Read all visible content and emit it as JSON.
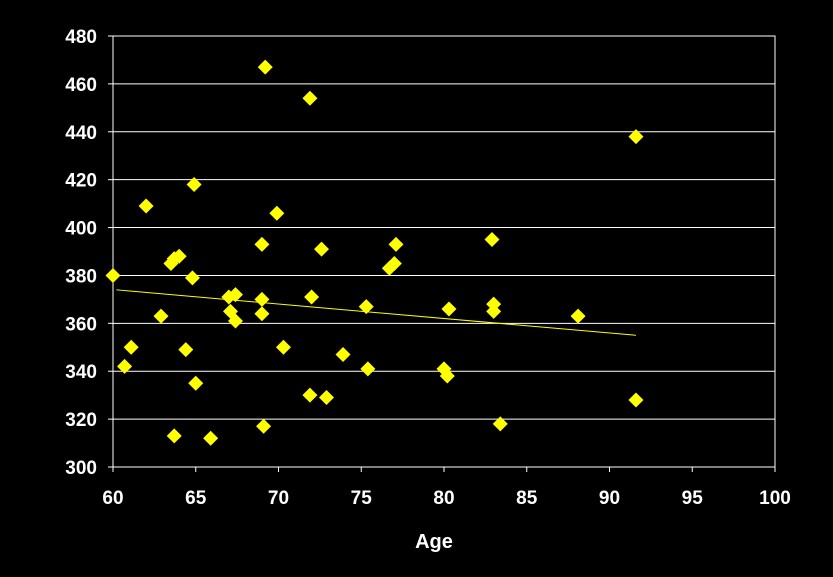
{
  "chart_data": {
    "type": "scatter",
    "title": "",
    "xlabel": "Age",
    "ylabel": "",
    "xlim": [
      60,
      100
    ],
    "ylim": [
      300,
      480
    ],
    "xticks": [
      60,
      65,
      70,
      75,
      80,
      85,
      90,
      95,
      100
    ],
    "yticks": [
      300,
      320,
      340,
      360,
      380,
      400,
      420,
      440,
      460,
      480
    ],
    "grid": "horizontal",
    "legend": "none",
    "colors": {
      "background": "#000000",
      "marker": "#ffff00",
      "trendline": "#ffff00",
      "gridline": "#ffffff",
      "text": "#ffffff"
    },
    "points": [
      {
        "x": 60.0,
        "y": 380
      },
      {
        "x": 60.7,
        "y": 342
      },
      {
        "x": 61.1,
        "y": 350
      },
      {
        "x": 62.0,
        "y": 409
      },
      {
        "x": 62.9,
        "y": 363
      },
      {
        "x": 63.5,
        "y": 385
      },
      {
        "x": 63.7,
        "y": 387
      },
      {
        "x": 63.7,
        "y": 313
      },
      {
        "x": 64.0,
        "y": 388
      },
      {
        "x": 64.4,
        "y": 349
      },
      {
        "x": 64.8,
        "y": 379
      },
      {
        "x": 64.9,
        "y": 418
      },
      {
        "x": 65.0,
        "y": 335
      },
      {
        "x": 65.9,
        "y": 312
      },
      {
        "x": 67.0,
        "y": 371
      },
      {
        "x": 67.1,
        "y": 365
      },
      {
        "x": 67.4,
        "y": 372
      },
      {
        "x": 67.4,
        "y": 361
      },
      {
        "x": 69.0,
        "y": 393
      },
      {
        "x": 69.0,
        "y": 370
      },
      {
        "x": 69.0,
        "y": 364
      },
      {
        "x": 69.2,
        "y": 467
      },
      {
        "x": 69.1,
        "y": 317
      },
      {
        "x": 69.9,
        "y": 406
      },
      {
        "x": 70.3,
        "y": 350
      },
      {
        "x": 71.9,
        "y": 454
      },
      {
        "x": 72.0,
        "y": 371
      },
      {
        "x": 71.9,
        "y": 330
      },
      {
        "x": 72.6,
        "y": 391
      },
      {
        "x": 72.9,
        "y": 329
      },
      {
        "x": 73.9,
        "y": 347
      },
      {
        "x": 75.3,
        "y": 367
      },
      {
        "x": 75.4,
        "y": 341
      },
      {
        "x": 76.7,
        "y": 383
      },
      {
        "x": 77.0,
        "y": 385
      },
      {
        "x": 77.1,
        "y": 393
      },
      {
        "x": 80.0,
        "y": 341
      },
      {
        "x": 80.2,
        "y": 338
      },
      {
        "x": 80.3,
        "y": 366
      },
      {
        "x": 82.9,
        "y": 395
      },
      {
        "x": 83.0,
        "y": 368
      },
      {
        "x": 83.0,
        "y": 365
      },
      {
        "x": 83.4,
        "y": 318
      },
      {
        "x": 88.1,
        "y": 363
      },
      {
        "x": 91.6,
        "y": 438
      },
      {
        "x": 91.6,
        "y": 328
      }
    ],
    "trendline": {
      "x": [
        60.2,
        91.6
      ],
      "y": [
        374,
        355
      ]
    }
  }
}
